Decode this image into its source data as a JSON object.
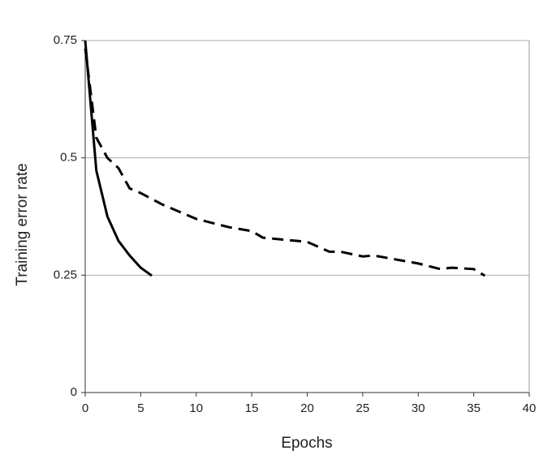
{
  "chart_data": {
    "type": "line",
    "xlabel": "Epochs",
    "ylabel": "Training error rate",
    "xlim": [
      0,
      40
    ],
    "xticks": [
      0,
      5,
      10,
      15,
      20,
      25,
      30,
      35,
      40
    ],
    "ylim": [
      0,
      0.75
    ],
    "yticks": [
      0,
      0.25,
      0.5,
      0.75
    ],
    "grid": true,
    "series": [
      {
        "color": "#000000",
        "linestyle": "solid",
        "x": [
          0,
          1,
          2,
          3,
          4,
          5,
          6
        ],
        "values": [
          0.75,
          0.473,
          0.375,
          0.323,
          0.292,
          0.266,
          0.249
        ]
      },
      {
        "color": "#000000",
        "linestyle": "dashed",
        "x": [
          0,
          1,
          2,
          3,
          4,
          5,
          7,
          10,
          13,
          15,
          16,
          20,
          22,
          23,
          25,
          26,
          30,
          32,
          33,
          35,
          36
        ],
        "values": [
          0.733,
          0.543,
          0.5,
          0.478,
          0.435,
          0.425,
          0.4,
          0.37,
          0.352,
          0.344,
          0.33,
          0.321,
          0.3,
          0.3,
          0.29,
          0.292,
          0.275,
          0.263,
          0.266,
          0.263,
          0.249
        ]
      }
    ]
  }
}
